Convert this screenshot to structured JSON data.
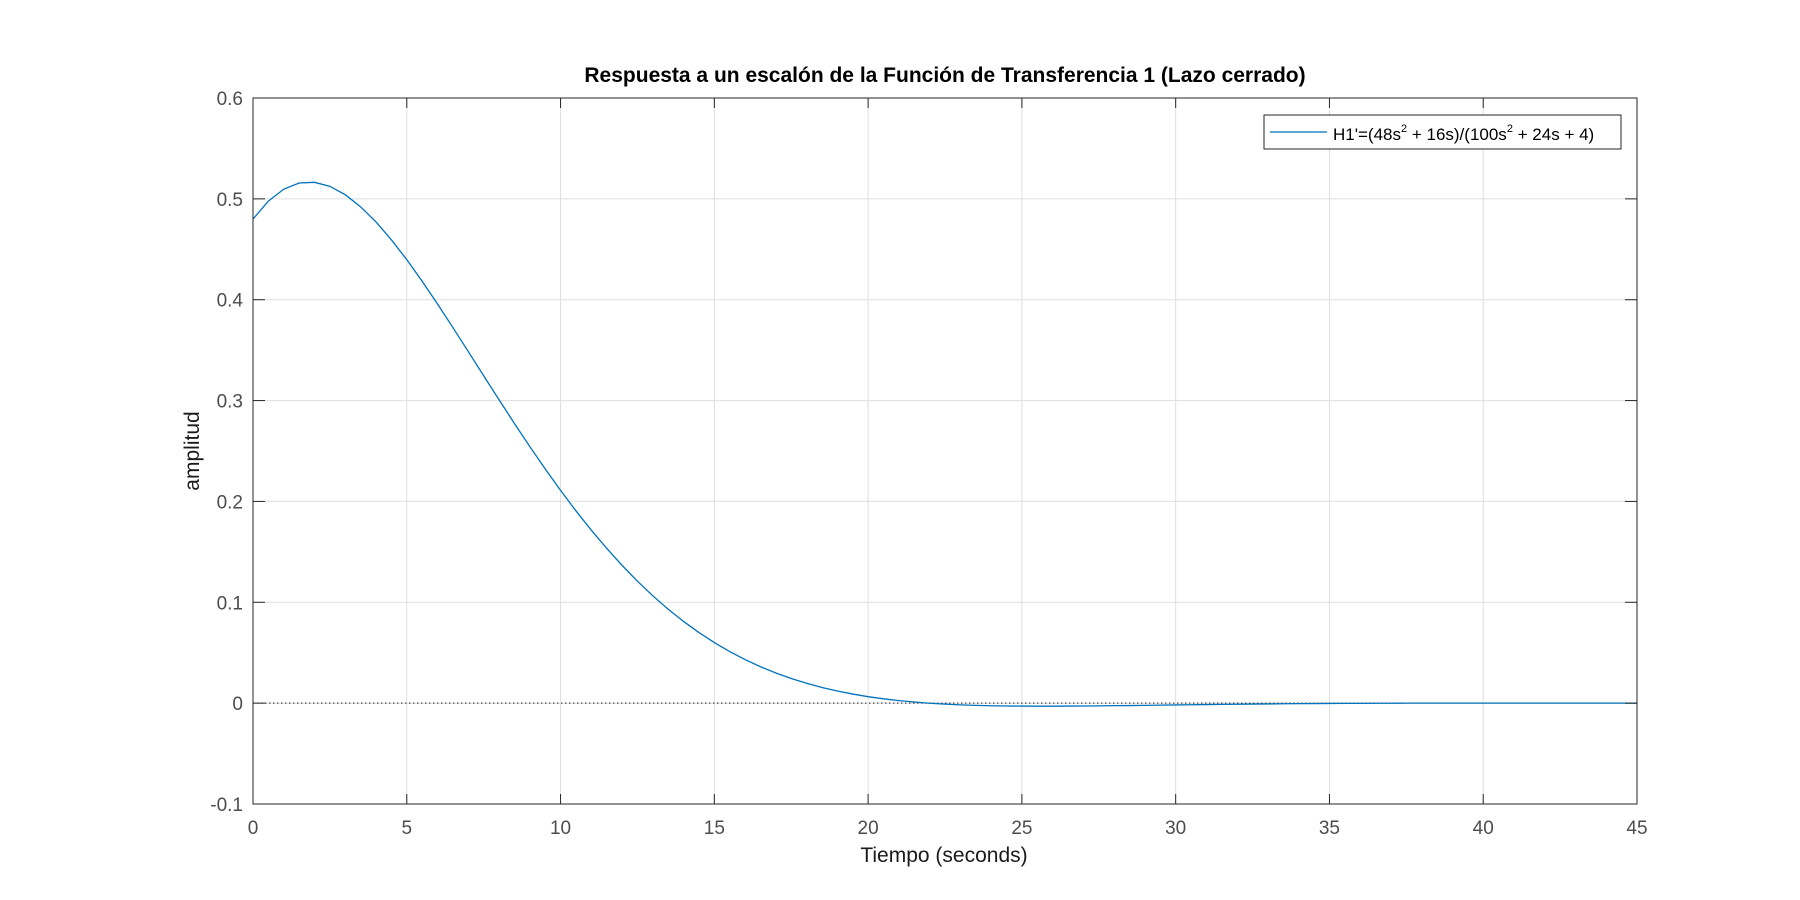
{
  "chart_data": {
    "type": "line",
    "title": "Respuesta a un escalón de la Función de Transferencia 1 (Lazo cerrado)",
    "xlabel": "Tiempo (seconds)",
    "ylabel": "amplitud",
    "xlim": [
      0,
      45
    ],
    "ylim": [
      -0.1,
      0.6
    ],
    "xticks": [
      0,
      5,
      10,
      15,
      20,
      25,
      30,
      35,
      40,
      45
    ],
    "yticks": [
      -0.1,
      0,
      0.1,
      0.2,
      0.3,
      0.4,
      0.5,
      0.6
    ],
    "xtick_labels": [
      "0",
      "5",
      "10",
      "15",
      "20",
      "25",
      "30",
      "35",
      "40",
      "45"
    ],
    "ytick_labels": [
      "-0.1",
      "0",
      "0.1",
      "0.2",
      "0.3",
      "0.4",
      "0.5",
      "0.6"
    ],
    "grid": true,
    "legend_position": "top-right",
    "reference_line": {
      "y": 0,
      "style": "dotted"
    },
    "legend": {
      "prefix": "H1'=(48s",
      "sup1": "2",
      "middle": " + 16s)/(100s",
      "sup2": "2",
      "suffix": " + 24s + 4)"
    },
    "series": [
      {
        "name": "H1'=(48s^2 + 16s)/(100s^2 + 24s + 4)",
        "color": "#0072BD",
        "x": [
          0,
          0.5,
          1,
          1.5,
          2,
          2.5,
          3,
          3.5,
          4,
          4.5,
          5,
          5.5,
          6,
          6.5,
          7,
          7.5,
          8,
          8.5,
          9,
          9.5,
          10,
          10.5,
          11,
          11.5,
          12,
          12.5,
          13,
          13.5,
          14,
          14.5,
          15,
          15.5,
          16,
          16.5,
          17,
          17.5,
          18,
          18.5,
          19,
          19.5,
          20,
          20.5,
          21,
          21.5,
          22,
          22.5,
          23,
          23.5,
          24,
          24.5,
          25,
          25.5,
          26,
          26.5,
          27,
          27.5,
          28,
          28.5,
          29,
          29.5,
          30,
          30.5,
          31,
          31.5,
          32,
          32.5,
          33,
          33.5,
          34,
          34.5,
          35,
          35.5,
          36,
          36.5,
          37,
          37.5,
          38,
          38.5,
          39,
          39.5,
          40,
          40.5,
          41,
          41.5,
          42,
          42.5,
          43,
          43.5,
          44,
          44.5,
          45
        ],
        "y": [
          0.48,
          0.4978,
          0.5096,
          0.5157,
          0.5164,
          0.5124,
          0.5041,
          0.4921,
          0.4771,
          0.4594,
          0.4397,
          0.4183,
          0.3957,
          0.3724,
          0.3486,
          0.3246,
          0.3008,
          0.2773,
          0.2544,
          0.2323,
          0.211,
          0.1907,
          0.1715,
          0.1535,
          0.1366,
          0.1209,
          0.1064,
          0.0931,
          0.081,
          0.07,
          0.0601,
          0.0511,
          0.0432,
          0.0361,
          0.0299,
          0.0244,
          0.0197,
          0.0155,
          0.012,
          0.009,
          0.0064,
          0.0043,
          0.0025,
          0.0011,
          -0.0001,
          -0.001,
          -0.0017,
          -0.0022,
          -0.0026,
          -0.0028,
          -0.0029,
          -0.003,
          -0.003,
          -0.0029,
          -0.0028,
          -0.0027,
          -0.0025,
          -0.0024,
          -0.0022,
          -0.002,
          -0.0018,
          -0.0016,
          -0.0014,
          -0.0012,
          -0.0011,
          -0.0009,
          -0.0008,
          -0.0006,
          -0.0005,
          -0.0004,
          -0.0003,
          -0.0002,
          -0.0002,
          -0.0001,
          -0.0001,
          0,
          0,
          0,
          0,
          0,
          0,
          0,
          0,
          0,
          0,
          0,
          0,
          0,
          0,
          0,
          0
        ]
      }
    ]
  }
}
